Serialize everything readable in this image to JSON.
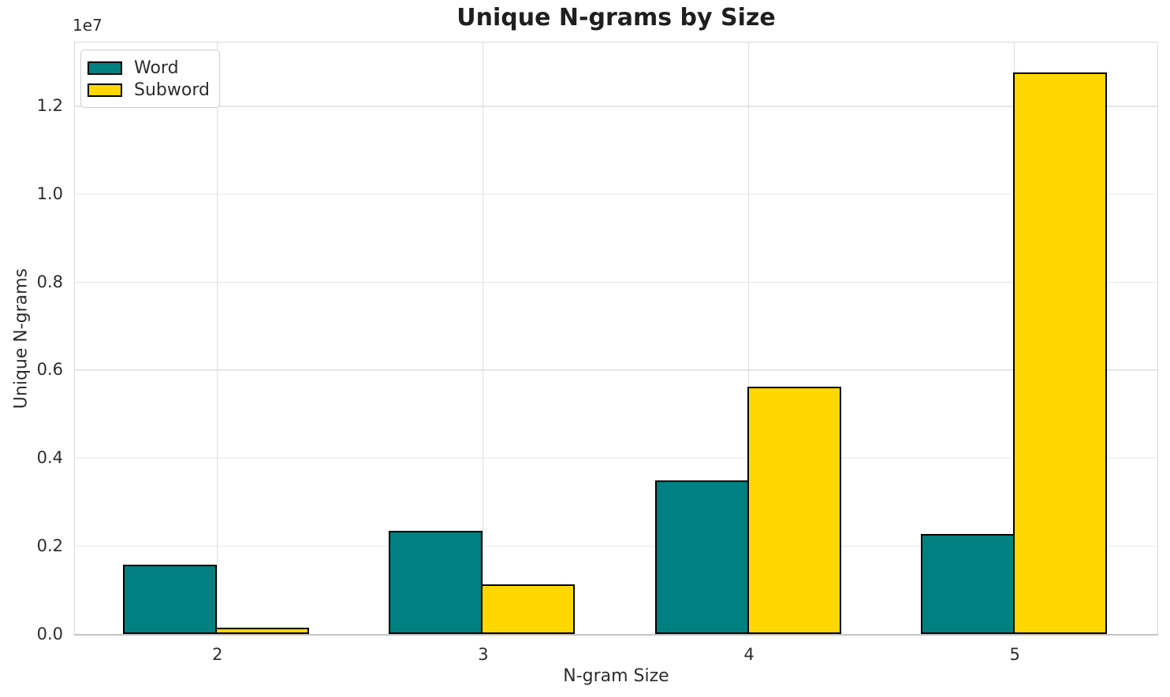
{
  "chart_data": {
    "type": "bar",
    "title": "Unique N-grams by Size",
    "xlabel": "N-gram Size",
    "ylabel": "Unique N-grams",
    "y_offset_text": "1e7",
    "categories": [
      "2",
      "3",
      "4",
      "5"
    ],
    "series": [
      {
        "name": "Word",
        "color": "#008080",
        "edge_color": "#000000",
        "values": [
          1570000,
          2350000,
          3500000,
          2280000
        ]
      },
      {
        "name": "Subword",
        "color": "#FFD700",
        "edge_color": "#000000",
        "values": [
          150000,
          1120000,
          5630000,
          12770000
        ]
      }
    ],
    "ylim": [
      0,
      13430000
    ],
    "yticks": [
      0,
      2000000,
      4000000,
      6000000,
      8000000,
      10000000,
      12000000
    ],
    "ytick_labels": [
      "0.0",
      "0.2",
      "0.4",
      "0.6",
      "0.8",
      "1.0",
      "1.2"
    ],
    "grid": true,
    "legend_position": "upper left",
    "colors": {
      "background": "#ffffff",
      "gridline": "#e6e6e6",
      "spine": "#d9d9d9",
      "baseline": "#c4c4c4",
      "text": "#2d2d2d",
      "title_text": "#1f1f1f"
    }
  }
}
